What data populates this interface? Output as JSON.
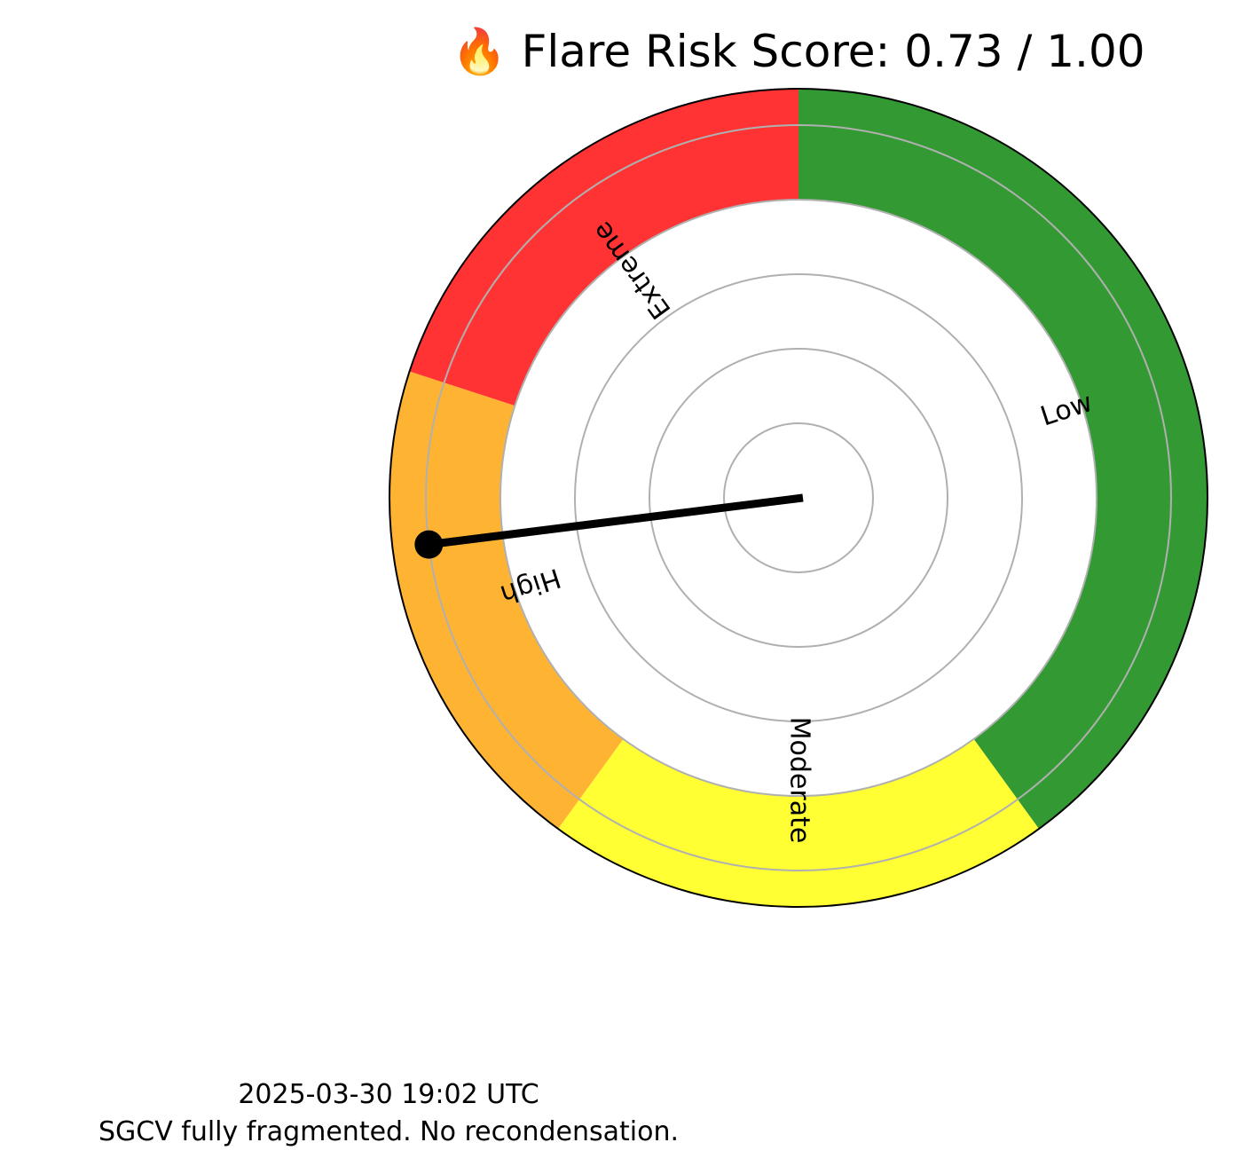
{
  "chart_data": {
    "type": "gauge",
    "title": "🔥 Flare Risk Score: 0.73 / 1.00",
    "score": 0.73,
    "max": 1.0,
    "bands": [
      {
        "name": "Low",
        "from": 0.0,
        "to": 0.4,
        "color": "#339933"
      },
      {
        "name": "Moderate",
        "from": 0.4,
        "to": 0.6,
        "color": "#ffff33"
      },
      {
        "name": "High",
        "from": 0.6,
        "to": 0.8,
        "color": "#ffb333"
      },
      {
        "name": "Extreme",
        "from": 0.8,
        "to": 1.0,
        "color": "#ff3333"
      }
    ],
    "needle_color": "#000000",
    "grid": true,
    "footer": {
      "timestamp": "2025-03-30 19:02 UTC",
      "note": "SGCV fully fragmented. No recondensation."
    }
  }
}
